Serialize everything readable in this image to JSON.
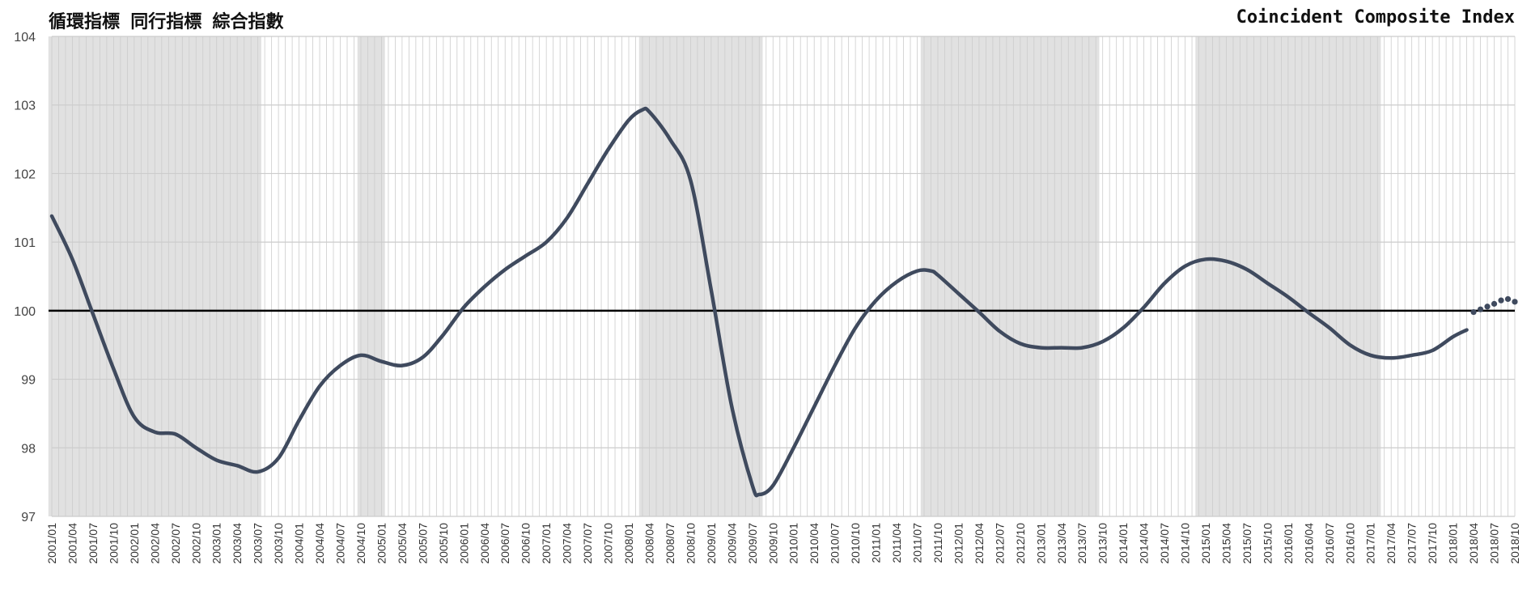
{
  "chart_data": {
    "type": "line",
    "title_ja": "循環指標 同行指標 綜合指數",
    "title_en": "Coincident Composite Index",
    "ylim": [
      97,
      104
    ],
    "yticks": [
      97,
      98,
      99,
      100,
      101,
      102,
      103,
      104
    ],
    "reference_line": 100,
    "x_start": "2001/01",
    "x_end": "2018/10",
    "x_tick_labels": [
      "2001/01",
      "2001/04",
      "2001/07",
      "2001/10",
      "2002/01",
      "2002/04",
      "2002/07",
      "2002/10",
      "2003/01",
      "2003/04",
      "2003/07",
      "2003/10",
      "2004/01",
      "2004/04",
      "2004/07",
      "2004/10",
      "2005/01",
      "2005/04",
      "2005/07",
      "2005/10",
      "2006/01",
      "2006/04",
      "2006/07",
      "2006/10",
      "2007/01",
      "2007/04",
      "2007/07",
      "2007/10",
      "2008/01",
      "2008/04",
      "2008/07",
      "2008/10",
      "2009/01",
      "2009/04",
      "2009/07",
      "2009/10",
      "2010/01",
      "2010/04",
      "2010/07",
      "2010/10",
      "2011/01",
      "2011/04",
      "2011/07",
      "2011/10",
      "2012/01",
      "2012/04",
      "2012/07",
      "2012/10",
      "2013/01",
      "2013/04",
      "2013/07",
      "2013/10",
      "2014/01",
      "2014/04",
      "2014/07",
      "2014/10",
      "2015/01",
      "2015/04",
      "2015/07",
      "2015/10",
      "2016/01",
      "2016/04",
      "2016/07",
      "2016/10",
      "2017/01",
      "2017/04",
      "2017/07",
      "2017/10",
      "2018/01",
      "2018/04",
      "2018/07",
      "2018/10"
    ],
    "shaded_periods": [
      [
        "2001/01",
        "2003/07"
      ],
      [
        "2004/10",
        "2005/01"
      ],
      [
        "2008/03",
        "2009/08"
      ],
      [
        "2011/08",
        "2013/09"
      ],
      [
        "2014/12",
        "2017/02"
      ]
    ],
    "series_solid": {
      "x": [
        "2001/01",
        "2001/04",
        "2001/07",
        "2001/10",
        "2002/01",
        "2002/04",
        "2002/07",
        "2002/10",
        "2003/01",
        "2003/04",
        "2003/07",
        "2003/10",
        "2004/01",
        "2004/04",
        "2004/07",
        "2004/10",
        "2005/01",
        "2005/04",
        "2005/07",
        "2005/10",
        "2006/01",
        "2006/04",
        "2006/07",
        "2006/10",
        "2007/01",
        "2007/04",
        "2007/07",
        "2007/10",
        "2008/01",
        "2008/03",
        "2008/04",
        "2008/07",
        "2008/10",
        "2009/01",
        "2009/04",
        "2009/07",
        "2009/08",
        "2009/10",
        "2010/01",
        "2010/04",
        "2010/07",
        "2010/10",
        "2011/01",
        "2011/04",
        "2011/07",
        "2011/09",
        "2011/10",
        "2012/01",
        "2012/04",
        "2012/07",
        "2012/10",
        "2013/01",
        "2013/04",
        "2013/07",
        "2013/10",
        "2014/01",
        "2014/04",
        "2014/07",
        "2014/10",
        "2015/01",
        "2015/04",
        "2015/07",
        "2015/10",
        "2016/01",
        "2016/04",
        "2016/07",
        "2016/10",
        "2017/01",
        "2017/04",
        "2017/07",
        "2017/10",
        "2018/01",
        "2018/03"
      ],
      "values": [
        101.38,
        100.75,
        99.95,
        99.15,
        98.45,
        98.23,
        98.2,
        98.0,
        97.82,
        97.74,
        97.65,
        97.85,
        98.4,
        98.9,
        99.2,
        99.35,
        99.26,
        99.2,
        99.32,
        99.65,
        100.05,
        100.35,
        100.6,
        100.8,
        101.0,
        101.35,
        101.85,
        102.35,
        102.78,
        102.93,
        102.9,
        102.5,
        101.9,
        100.3,
        98.6,
        97.45,
        97.32,
        97.45,
        98.0,
        98.6,
        99.2,
        99.75,
        100.15,
        100.42,
        100.58,
        100.58,
        100.52,
        100.25,
        99.98,
        99.7,
        99.52,
        99.46,
        99.46,
        99.46,
        99.55,
        99.75,
        100.05,
        100.4,
        100.65,
        100.75,
        100.72,
        100.6,
        100.4,
        100.2,
        99.97,
        99.75,
        99.5,
        99.35,
        99.31,
        99.35,
        99.42,
        99.62,
        99.72
      ]
    },
    "series_dotted": {
      "x": [
        "2018/04",
        "2018/05",
        "2018/06",
        "2018/07",
        "2018/08",
        "2018/09",
        "2018/10"
      ],
      "values": [
        99.98,
        100.02,
        100.06,
        100.1,
        100.15,
        100.17,
        100.13
      ]
    },
    "colors": {
      "line": "#3f4a5e",
      "shading": "#e1e1e1",
      "grid": "#cccccc",
      "baseline": "#000000"
    }
  }
}
